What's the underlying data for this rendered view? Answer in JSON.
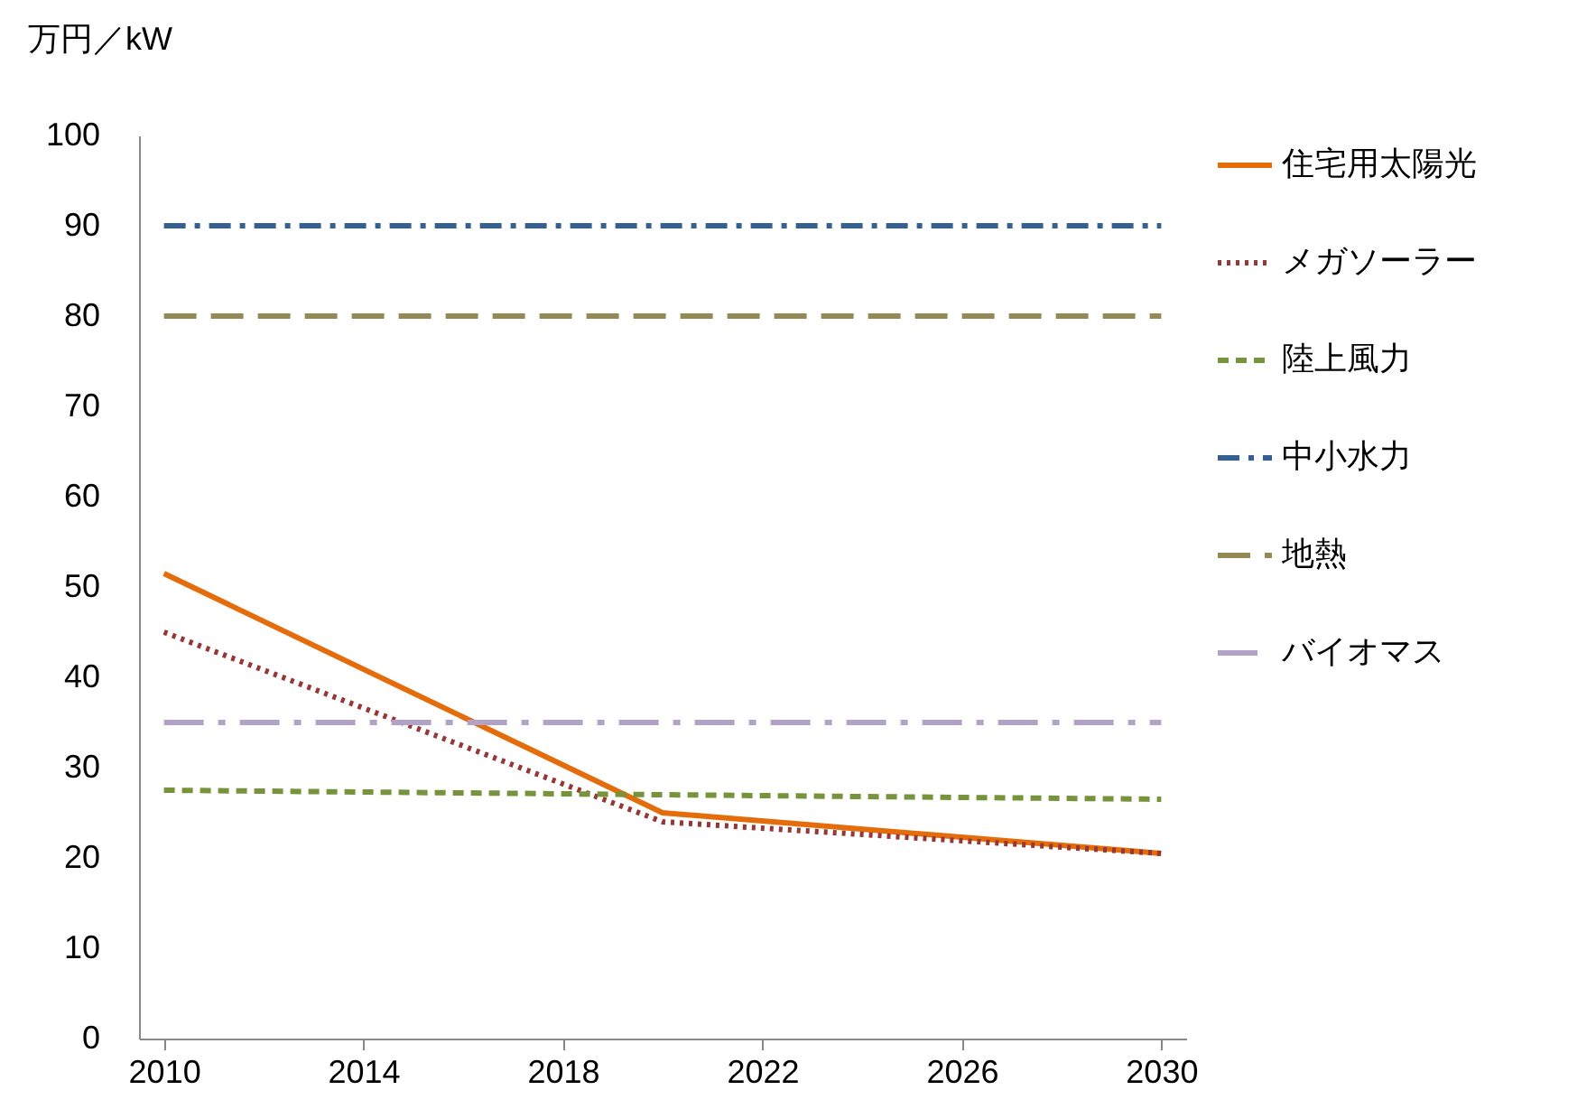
{
  "chart_data": {
    "type": "line",
    "ylabel": "万円／kW",
    "xlim": [
      2009.5,
      2030.5
    ],
    "xticks": [
      2010,
      2014,
      2018,
      2022,
      2026,
      2030
    ],
    "ylim": [
      0,
      100
    ],
    "yticks": [
      0,
      10,
      20,
      30,
      40,
      50,
      60,
      70,
      80,
      90,
      100
    ],
    "grid": false,
    "legend": "right",
    "marker": "none",
    "series": [
      {
        "name": "住宅用太陽光",
        "color": "#e46c0a",
        "line_style": "solid",
        "x": [
          2010,
          2020,
          2030
        ],
        "values": [
          51.5,
          25,
          20.5
        ]
      },
      {
        "name": "メガソーラー",
        "color": "#953735",
        "line_style": "dotted",
        "x": [
          2010,
          2020,
          2030
        ],
        "values": [
          45,
          24,
          20.5
        ]
      },
      {
        "name": "陸上風力",
        "color": "#77933c",
        "line_style": "dashed",
        "x": [
          2010,
          2030
        ],
        "values": [
          27.5,
          26.5
        ]
      },
      {
        "name": "中小水力",
        "color": "#376092",
        "line_style": "dashdot",
        "x": [
          2010,
          2030
        ],
        "values": [
          90,
          90
        ]
      },
      {
        "name": "地熱",
        "color": "#948a54",
        "line_style": "longdash",
        "x": [
          2010,
          2030
        ],
        "values": [
          80,
          80
        ]
      },
      {
        "name": "バイオマス",
        "color": "#b3a2c7",
        "line_style": "longdashdot",
        "x": [
          2010,
          2030
        ],
        "values": [
          35,
          35
        ]
      }
    ]
  }
}
